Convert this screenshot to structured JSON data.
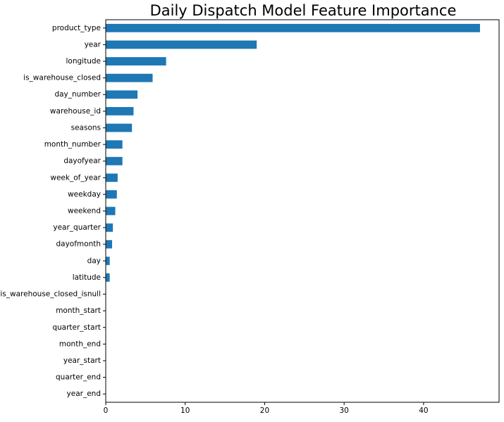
{
  "chart_data": {
    "type": "bar",
    "orientation": "horizontal",
    "title": "Daily Dispatch Model Feature Importance",
    "xlabel": "",
    "ylabel": "",
    "xlim": [
      0,
      49.5
    ],
    "x_ticks": [
      0,
      10,
      20,
      30,
      40
    ],
    "grid": false,
    "bar_color": "#1f77b4",
    "categories": [
      "product_type",
      "year",
      "longitude",
      "is_warehouse_closed",
      "day_number",
      "warehouse_id",
      "seasons",
      "month_number",
      "dayofyear",
      "week_of_year",
      "weekday",
      "weekend",
      "year_quarter",
      "dayofmonth",
      "day",
      "latitude",
      "is_warehouse_closed_isnull",
      "month_start",
      "quarter_start",
      "month_end",
      "year_start",
      "quarter_end",
      "year_end"
    ],
    "values": [
      47.1,
      19.0,
      7.6,
      5.9,
      4.0,
      3.5,
      3.3,
      2.1,
      2.1,
      1.5,
      1.4,
      1.2,
      0.9,
      0.8,
      0.5,
      0.5,
      0.0,
      0.0,
      0.0,
      0.0,
      0.0,
      0.0,
      0.0
    ]
  }
}
